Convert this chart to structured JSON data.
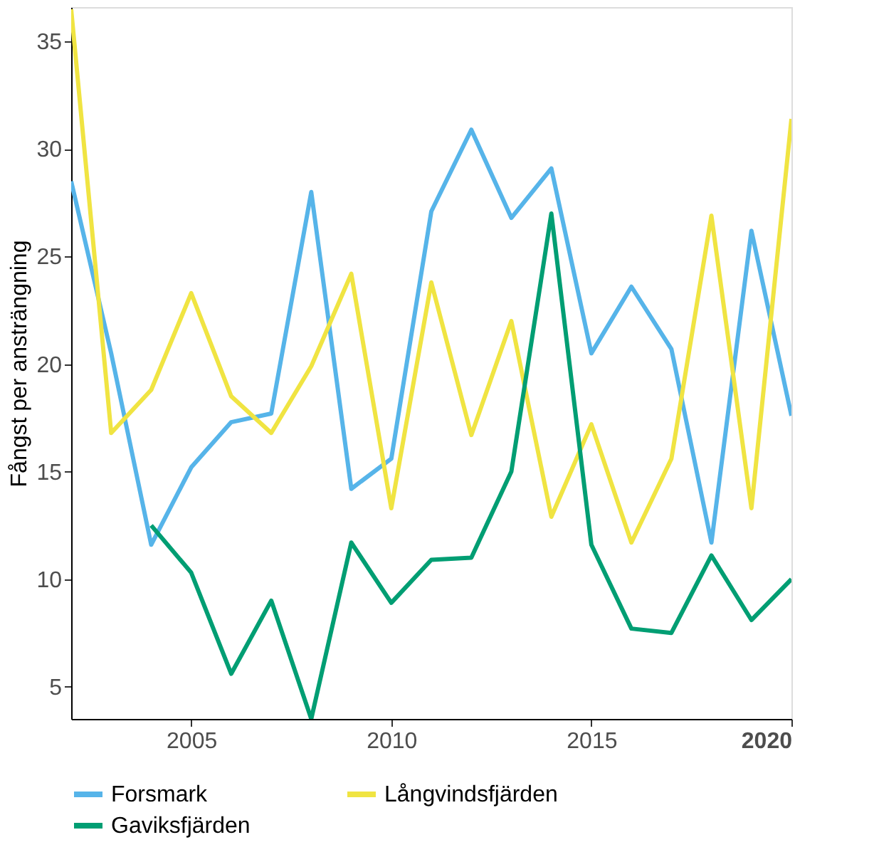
{
  "chart_data": {
    "type": "line",
    "ylabel": "Fångst per ansträngning",
    "x": [
      2002,
      2003,
      2004,
      2005,
      2006,
      2007,
      2008,
      2009,
      2010,
      2011,
      2012,
      2013,
      2014,
      2015,
      2016,
      2017,
      2018,
      2019,
      2020
    ],
    "series": [
      {
        "name": "Forsmark",
        "color": "#56b4e9",
        "values": [
          28.5,
          20.5,
          11.6,
          15.2,
          17.3,
          17.7,
          28.0,
          14.2,
          15.6,
          27.1,
          30.9,
          26.8,
          29.1,
          20.5,
          23.6,
          20.7,
          11.7,
          26.2,
          17.6
        ]
      },
      {
        "name": "Långvindsfjärden",
        "color": "#f0e442",
        "values": [
          36.5,
          16.8,
          18.8,
          23.3,
          18.5,
          16.8,
          19.9,
          24.2,
          13.3,
          23.8,
          16.7,
          22.0,
          12.9,
          17.2,
          11.7,
          15.6,
          26.9,
          13.3,
          31.4
        ]
      },
      {
        "name": "Gaviksfjärden",
        "color": "#009e73",
        "values": [
          null,
          null,
          12.5,
          10.3,
          5.6,
          9.0,
          3.5,
          11.7,
          8.9,
          10.9,
          11.0,
          15.0,
          27.0,
          11.6,
          7.7,
          7.5,
          11.1,
          8.1,
          10.0
        ]
      }
    ],
    "xlim": [
      2002,
      2020
    ],
    "xticks": [
      2005,
      2010,
      2015,
      2020
    ],
    "ylim": [
      3.5,
      36.6
    ],
    "yticks": [
      5,
      10,
      15,
      20,
      25,
      30,
      35
    ],
    "grid": false,
    "legend": "bottom",
    "line_style": "solid",
    "marker": "none"
  }
}
